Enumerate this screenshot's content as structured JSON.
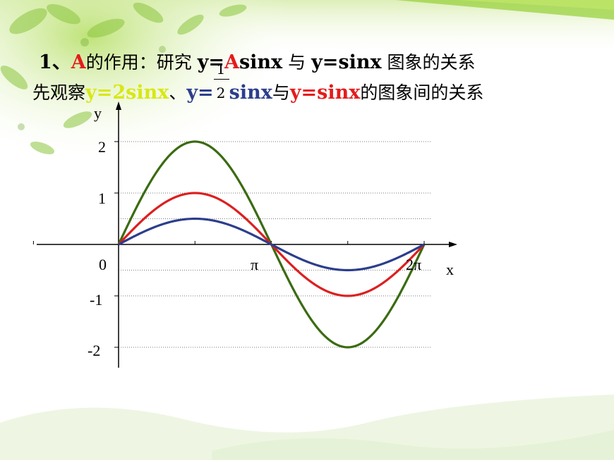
{
  "header": {
    "line1": {
      "prefix": "1、",
      "a": "A",
      "cn1": "的作用：研究 ",
      "eq1_a": "y=",
      "eq1_b": "A",
      "eq1_c": "sinx",
      "cn2": " 与 ",
      "eq2": "y=sinx",
      "cn3": " 图象的关系"
    },
    "line2": {
      "cn1": "先观察",
      "eq1": "y=2sinx",
      "sep": "、",
      "eq2_a": "y=",
      "frac_num": "1",
      "frac_den": "2",
      "eq2_b": "sinx",
      "cn2": "与",
      "eq3": "y=sinx",
      "cn3": "的图象间的关系"
    }
  },
  "colors": {
    "green_curve": "#3a6b10",
    "red_curve": "#dd1f1f",
    "blue_curve": "#2c3e8c",
    "title_red": "#e31c1c",
    "title_yellow": "#d8e812",
    "title_blue": "#2c3e8c"
  },
  "chart_data": {
    "type": "line",
    "xlabel": "x",
    "ylabel": "y",
    "x_range_label": [
      "0",
      "π",
      "2π"
    ],
    "y_ticks": [
      "2",
      "1",
      "-1",
      "-2"
    ],
    "y_tick_values": [
      2,
      1,
      -1,
      -2
    ],
    "x_tick_values": [
      0,
      3.14159,
      6.28318
    ],
    "xlim": [
      0,
      6.28318
    ],
    "ylim": [
      -2,
      2
    ],
    "grid": "dotted horizontal",
    "series": [
      {
        "color": "#3a6b10",
        "amplitude": 2
      },
      {
        "color": "#dd1f1f",
        "amplitude": 1
      },
      {
        "color": "#2c3e8c",
        "amplitude": 0.5
      }
    ]
  }
}
